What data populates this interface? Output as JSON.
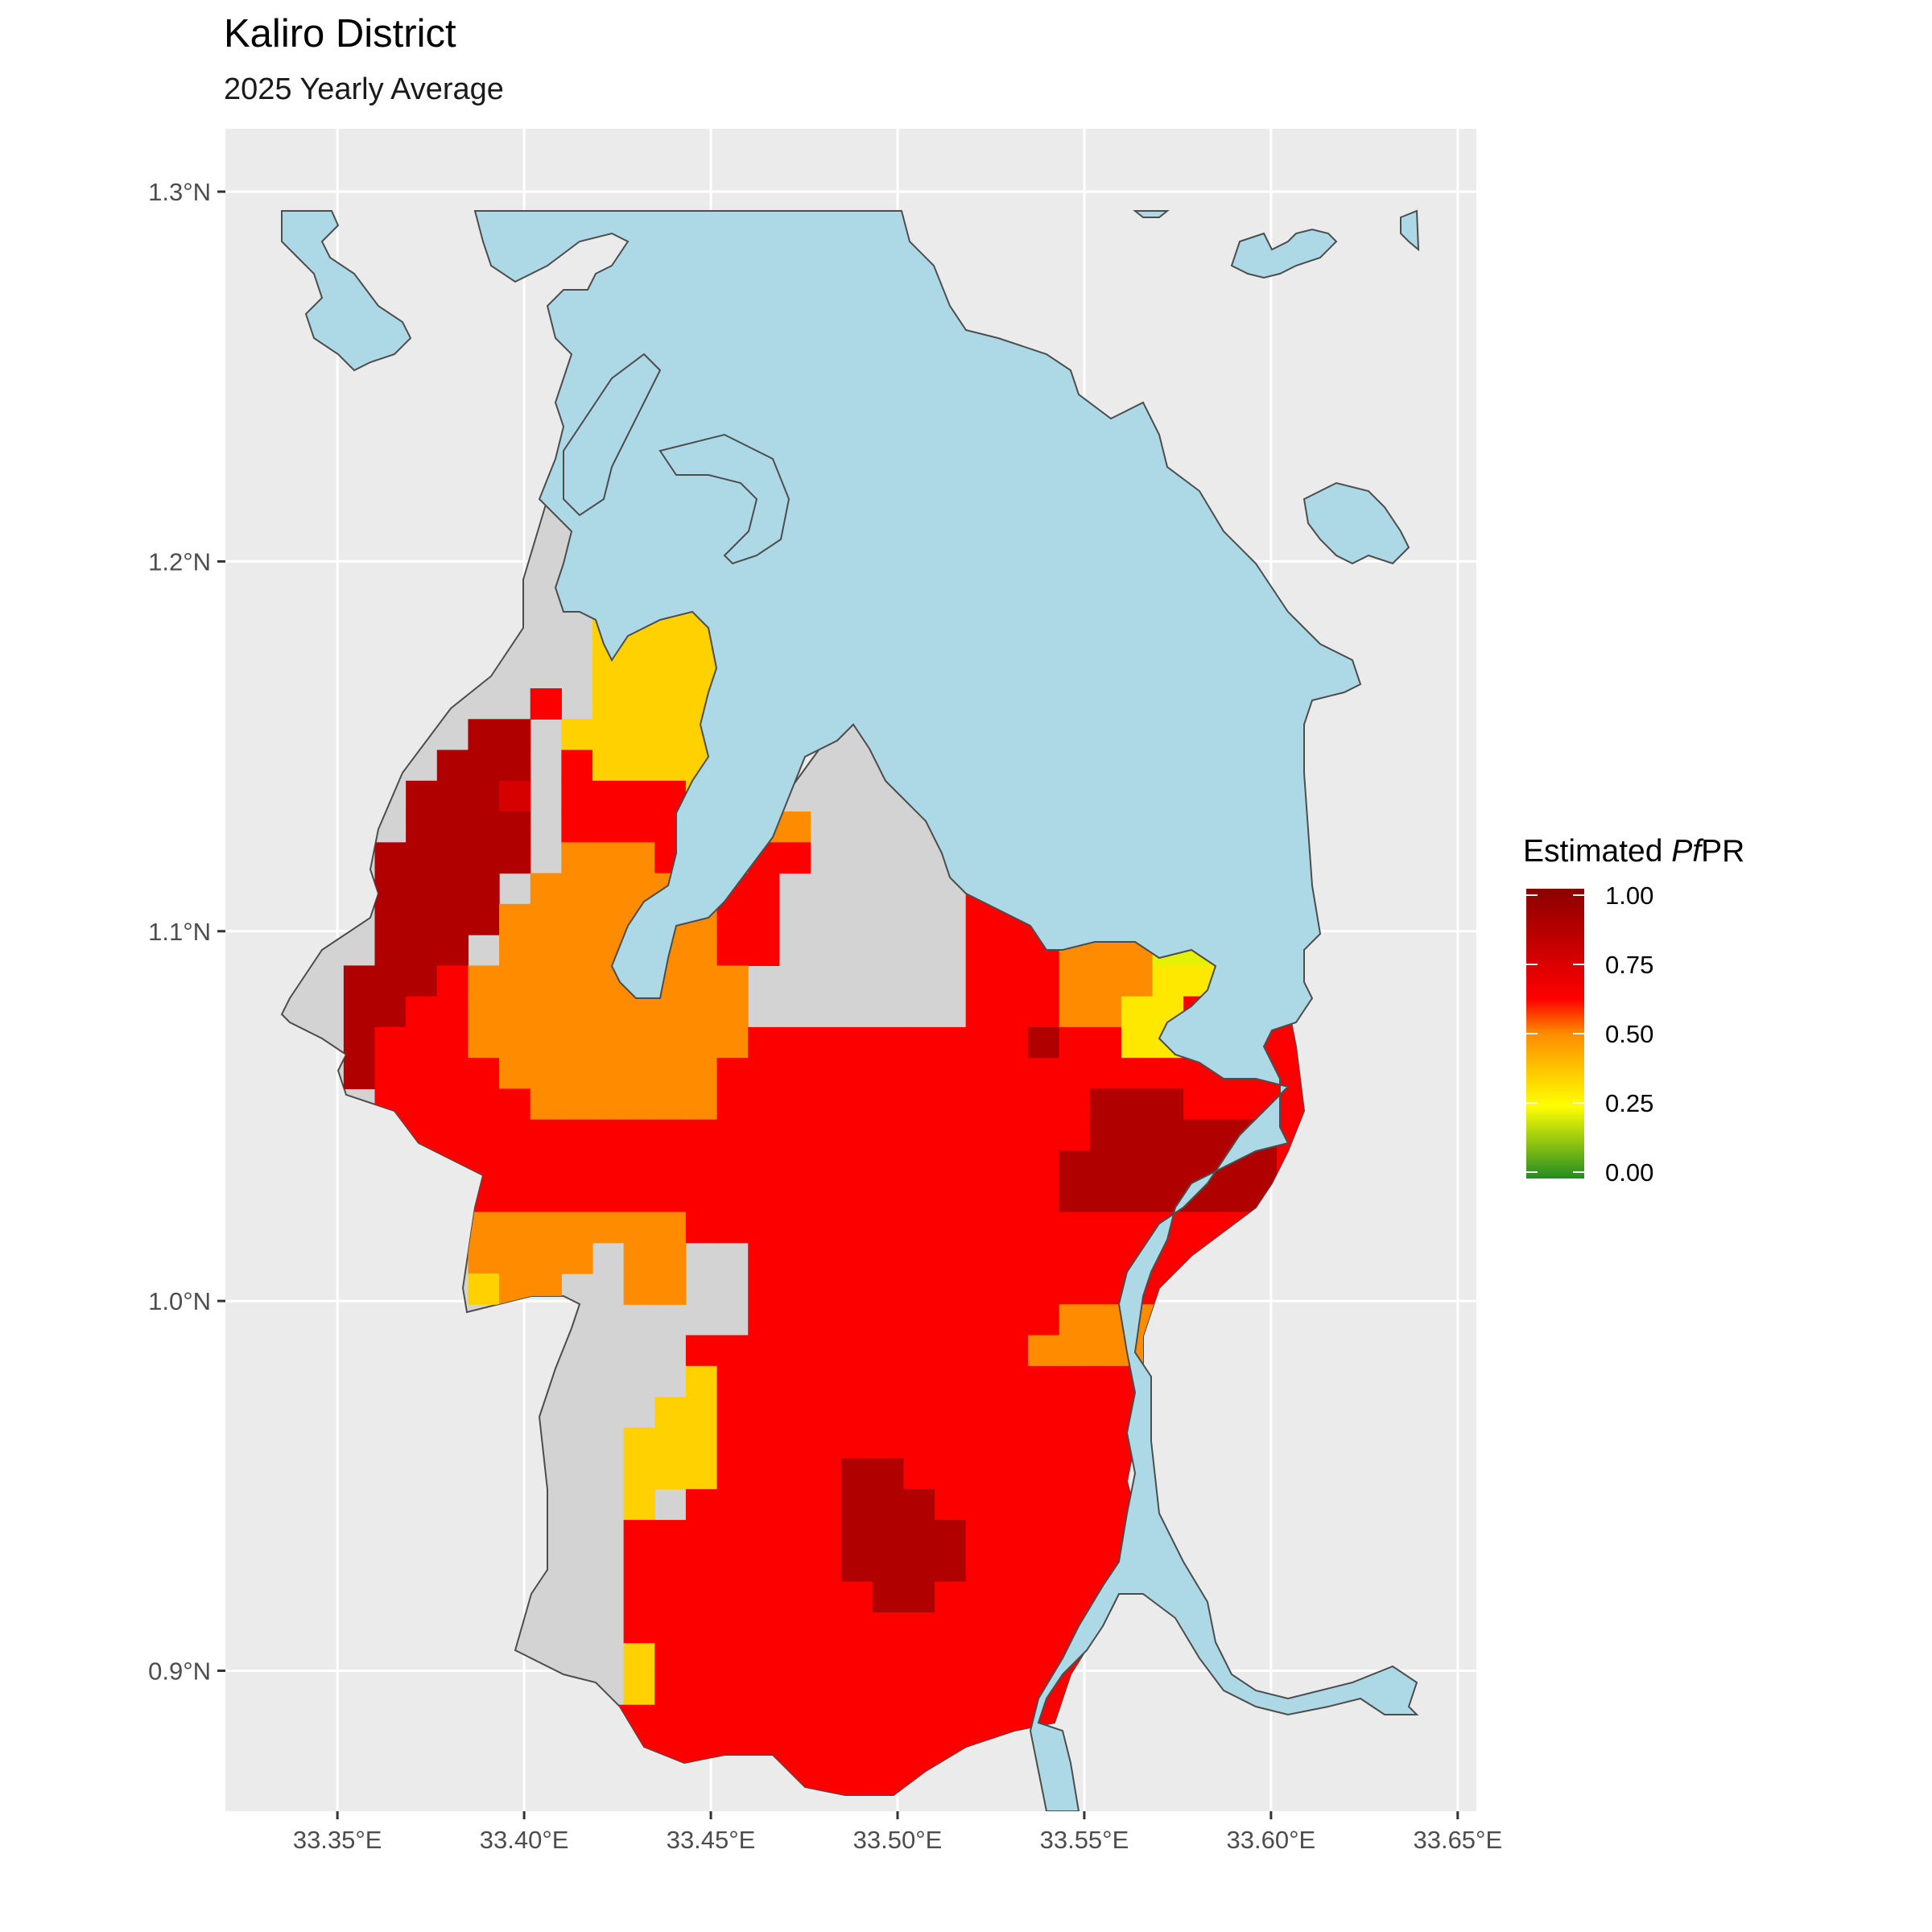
{
  "title": "Kaliro District",
  "subtitle": "2025 Yearly Average",
  "map": {
    "x_axis": {
      "range": [
        33.32,
        33.655
      ],
      "ticks": [
        33.35,
        33.4,
        33.45,
        33.5,
        33.55,
        33.6,
        33.65
      ],
      "tick_labels": [
        "33.35°E",
        "33.40°E",
        "33.45°E",
        "33.50°E",
        "33.55°E",
        "33.60°E",
        "33.65°E"
      ]
    },
    "y_axis": {
      "range": [
        0.862,
        1.317
      ],
      "ticks": [
        0.9,
        1.0,
        1.1,
        1.2,
        1.3
      ],
      "tick_labels": [
        "0.9°N",
        "1.0°N",
        "1.1°N",
        "1.2°N",
        "1.3°N"
      ]
    },
    "grid": true,
    "panel_color": "#ebebeb",
    "water_color": "#add8e6",
    "district_fill": "#d3d3d3",
    "prevalence_grid": {
      "origin_lon": 33.335,
      "origin_lat": 1.224,
      "cell_deg": 0.00833,
      "levels": {
        "a": 0.35,
        "o": 0.5,
        "r": 0.63,
        "d": 0.75,
        "D": 0.88,
        "y": 0.3,
        "Y": 0.22
      },
      "rows": [
        "...............aaa....................",
        ".............aaaaaa...................",
        "..........aaaaaaaaa...................",
        "..........aaaaaaaaa...................",
        "..........aaaaaaaaa...................",
        "..........aaaaaa.a....................",
        "..........aaaaaaaaa.........ooo.......",
        "........r.aaaaaaaa.........ooooo......",
        "......DD.aaaaaaaa.........ooo.r.......",
        ".....DDD.raaaaaa.........ooorrrr......",
        "....DDDd.rrrraaa.......rrrooorrr.rrrr.",
        "....DDDD.rrrrrooo......rrrYYYrrrrrrr..",
        "...DDDDD.ooorrorr.....rrroYYYYrrrrrro.",
        "...DDDD.ooooorrr......rrrooYYYYrrrrro.",
        "...DDDDooooooorr......rrroooYYYYrrrrro",
        "...DDD.ooooooorr......rrroooYYYYrrrrro",
        "..DDDrooooooooo.......rrroooyyrrrrrroo",
        "..DDrrooooooooo.......rrrooyyrrrrrrroo",
        "..DrrrooooooooorrrrrrrrrDrryyrrrrrrrro",
        "..Drrrrooooooorrrrrrrrrrrrrrrrrrrrrrro",
        "...rrrrroooooorrrrrrrrrrrrDDDrrrrrrrrr",
        "...rrrrrrrrrrrrrrrrrrrrrrrDDDDDDrrooor",
        "....rrrrrrrrrrrrrrrrrrrrrDDDDDDDrooorr",
        ".....rrrrrrrrrrrrrrrrrrrrDDDDDDDoooor.",
        ".....rooooooorrrrrrrrrrrrrrrrrrrooooo.",
        "......oooo.oo..rrrrrrrrrrrrrrrrrooo...",
        "......aoo..oo..rrrrrrrrrrrrrrrrrr.....",
        "...............rrrrrrrrrroooooooo.....",
        ".............rrrrrrrrrrrooooooooo.....",
        ".............arrrrrrrrrrrrrrrrrr......",
        "............aarrrrrrrrrrrrrrrrrr......",
        "...........aaarrrrrrrrrrrrrrrrrr......",
        "...........aaarrrrDDrrrrrrrrrrrr......",
        "...........a.rrrrrDDDrrrrrrrrrrr......",
        "...........rrrrrrrDDDDrrrrrrrrrr......",
        "...........rrrrrrrDDDDrrrrrrrrrr......",
        "...........rrrrrrrrDDrrrrrrrrrr.......",
        "...........rrrrrrrrrrrrrrrrrrrr.......",
        "...........arrrrrrrrrrrrrrrrrr........",
        "...........arrrrrrrrrrrrrrrrrr........",
        "..........rrrrrrrrrrrrrrrrrrrr........",
        "...........rrrrrrrrrrrrrrrrrrr........",
        "............DrrrrrrrrrrrrrrrD.........",
        ".............Drrrrrrrrrrrrrr..........",
        "...............rrrrrrrrrrrr...........",
        "..................aa.rr..............."
      ]
    }
  },
  "legend": {
    "title_prefix": "Estimated ",
    "title_italic": "Pf",
    "title_suffix": "PR",
    "labels": [
      "1.00",
      "0.75",
      "0.50",
      "0.25",
      "0.00"
    ],
    "values": [
      1.0,
      0.75,
      0.5,
      0.25,
      0.0
    ],
    "gradient": [
      "#228b22",
      "#ffff00",
      "#ff8c00",
      "#ff0000",
      "#8b0000"
    ]
  }
}
